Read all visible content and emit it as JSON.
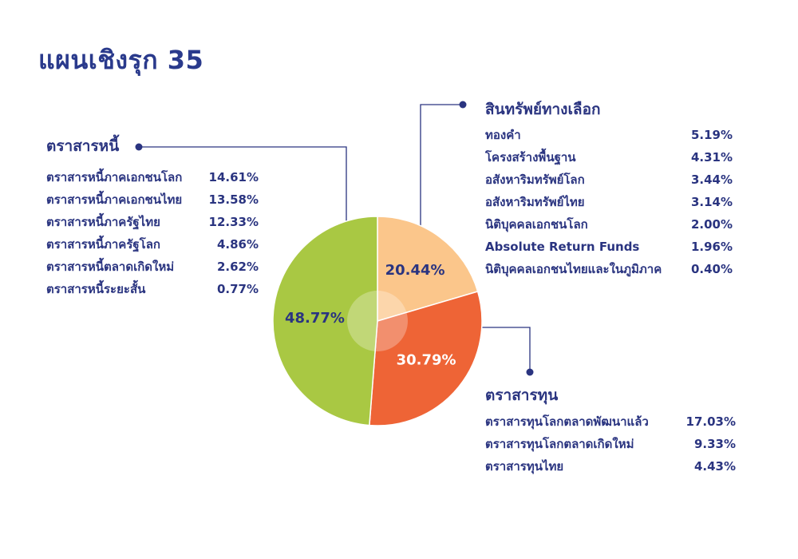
{
  "page": {
    "title": "แผนเชิงรุก 35"
  },
  "colors": {
    "navy": "#2a3480",
    "debt": "#a9c843",
    "alternative": "#fbc68b",
    "equity": "#ee6436"
  },
  "chart_data": {
    "type": "pie",
    "title": "แผนเชิงรุก 35",
    "slices": [
      {
        "key": "alternative",
        "value": 20.44,
        "label": "20.44%"
      },
      {
        "key": "equity",
        "value": 30.79,
        "label": "30.79%"
      },
      {
        "key": "debt",
        "value": 48.77,
        "label": "48.77%"
      }
    ]
  },
  "groups": {
    "debt": {
      "title": "ตราสารหนี้",
      "items": [
        {
          "name": "ตราสารหนี้ภาคเอกชนโลก",
          "value": "14.61%"
        },
        {
          "name": "ตราสารหนี้ภาคเอกชนไทย",
          "value": "13.58%"
        },
        {
          "name": "ตราสารหนี้ภาครัฐไทย",
          "value": "12.33%"
        },
        {
          "name": "ตราสารหนี้ภาครัฐโลก",
          "value": "4.86%"
        },
        {
          "name": "ตราสารหนี้ตลาดเกิดใหม่",
          "value": "2.62%"
        },
        {
          "name": "ตราสารหนี้ระยะสั้น",
          "value": "0.77%"
        }
      ]
    },
    "alternative": {
      "title": "สินทรัพย์ทางเลือก",
      "items": [
        {
          "name": "ทองคำ",
          "value": "5.19%"
        },
        {
          "name": "โครงสร้างพื้นฐาน",
          "value": "4.31%"
        },
        {
          "name": "อสังหาริมทรัพย์โลก",
          "value": "3.44%"
        },
        {
          "name": "อสังหาริมทรัพย์ไทย",
          "value": "3.14%"
        },
        {
          "name": "นิติบุคคลเอกชนโลก",
          "value": "2.00%"
        },
        {
          "name": "Absolute Return Funds",
          "value": "1.96%"
        },
        {
          "name": "นิติบุคคลเอกชนไทยและในภูมิภาค",
          "value": "0.40%"
        }
      ]
    },
    "equity": {
      "title": "ตราสารทุน",
      "items": [
        {
          "name": "ตราสารทุนโลกตลาดพัฒนาแล้ว",
          "value": "17.03%"
        },
        {
          "name": "ตราสารทุนโลกตลาดเกิดใหม่",
          "value": "9.33%"
        },
        {
          "name": "ตราสารทุนไทย",
          "value": "4.43%"
        }
      ]
    }
  }
}
